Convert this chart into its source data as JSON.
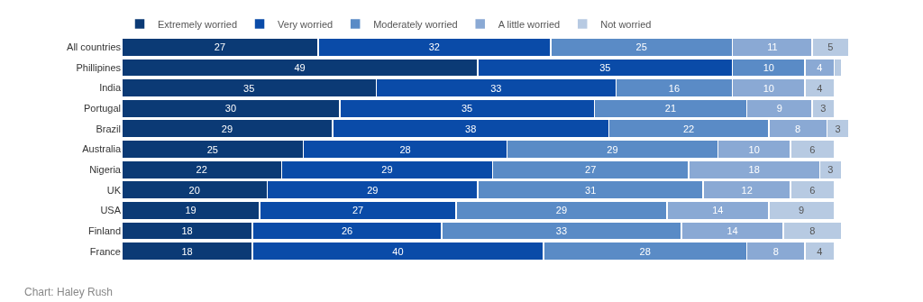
{
  "chart_data": {
    "type": "bar",
    "orientation": "horizontal",
    "stacked": true,
    "categories": [
      "All countries",
      "Phillipines",
      "India",
      "Portugal",
      "Brazil",
      "Australia",
      "Nigeria",
      "UK",
      "USA",
      "Finland",
      "France"
    ],
    "series": [
      {
        "name": "Extremely worried",
        "color": "#0b3a75",
        "values": [
          27,
          49,
          35,
          30,
          29,
          25,
          22,
          20,
          19,
          18,
          18
        ]
      },
      {
        "name": "Very worried",
        "color": "#0a4ba8",
        "values": [
          32,
          35,
          33,
          35,
          38,
          28,
          29,
          29,
          27,
          26,
          40
        ]
      },
      {
        "name": "Moderately worried",
        "color": "#5a8bc6",
        "values": [
          25,
          10,
          16,
          21,
          22,
          29,
          27,
          31,
          29,
          33,
          28
        ]
      },
      {
        "name": "A little worried",
        "color": "#8aa9d4",
        "values": [
          11,
          4,
          10,
          9,
          8,
          10,
          18,
          12,
          14,
          14,
          8
        ]
      },
      {
        "name": "Not worried",
        "color": "#b7cae2",
        "values": [
          5,
          1,
          4,
          3,
          3,
          6,
          3,
          6,
          9,
          8,
          4
        ],
        "value_labels": [
          "5",
          null,
          "4",
          "3",
          "3",
          "6",
          "3",
          "6",
          "9",
          "8",
          "4"
        ]
      }
    ],
    "data_labels": true,
    "legend": "top left",
    "annotations": [
      "Chart: Haley Rush"
    ]
  }
}
